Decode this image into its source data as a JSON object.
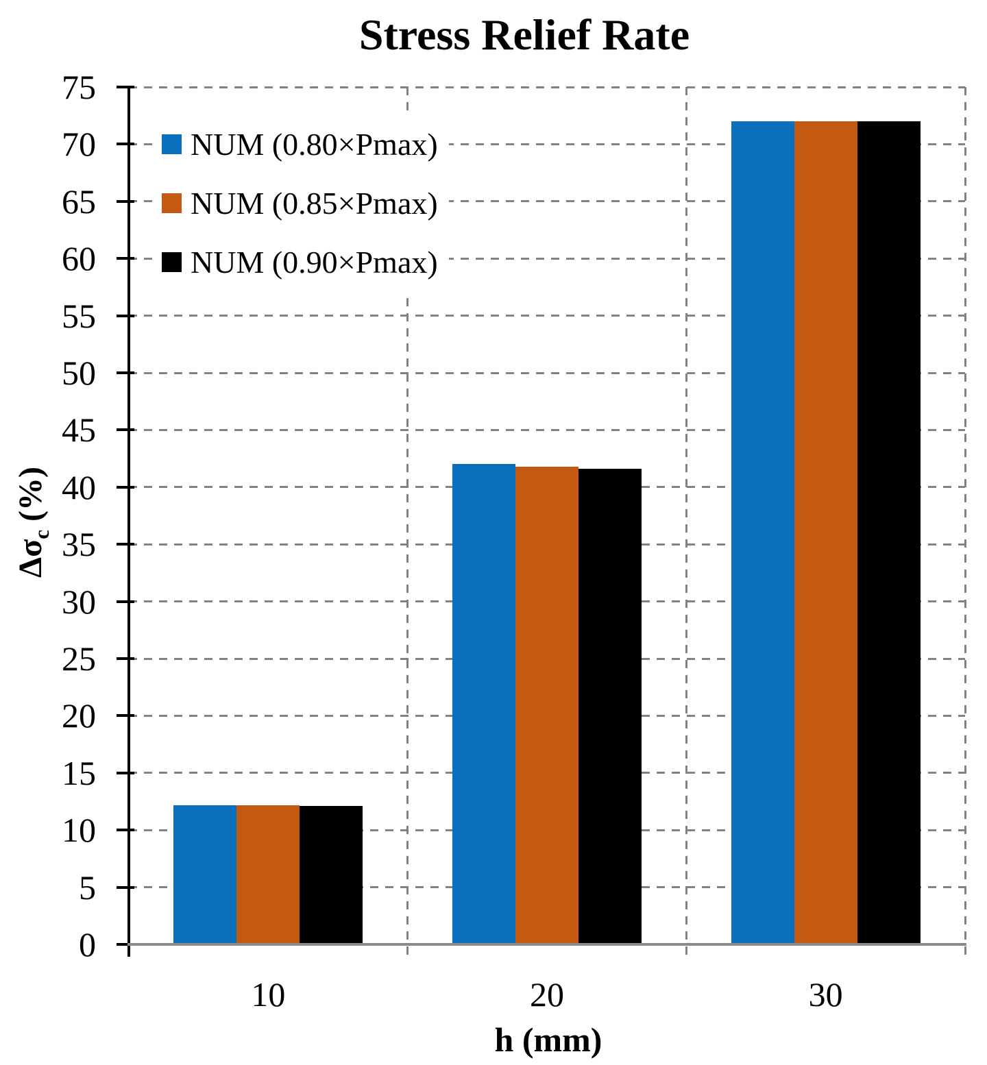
{
  "chart_data": {
    "type": "bar",
    "title": "Stress Relief Rate",
    "xlabel": "h (mm)",
    "ylabel": "Δσc (%)",
    "ylabel_parts": {
      "main": "Δσ",
      "sub": "c",
      "unit": " (%)"
    },
    "categories": [
      "10",
      "20",
      "30"
    ],
    "series": [
      {
        "name": "NUM (0.80×Pmax)",
        "color": "#0A70BE",
        "values": [
          12.2,
          42.0,
          72.0
        ]
      },
      {
        "name": "NUM (0.85×Pmax)",
        "color": "#C45A11",
        "values": [
          12.2,
          41.8,
          72.0
        ]
      },
      {
        "name": "NUM (0.90×Pmax)",
        "color": "#000000",
        "values": [
          12.1,
          41.6,
          72.0
        ]
      }
    ],
    "ylim": [
      0,
      75
    ],
    "yticks": [
      0,
      5,
      10,
      15,
      20,
      25,
      30,
      35,
      40,
      45,
      50,
      55,
      60,
      65,
      70,
      75
    ],
    "grid": "dashed",
    "legend_position": "inside-top-left",
    "colors": {
      "gridline": "#828282",
      "baseline": "#8a8a8a",
      "axis": "#000000",
      "background": "#ffffff"
    }
  }
}
